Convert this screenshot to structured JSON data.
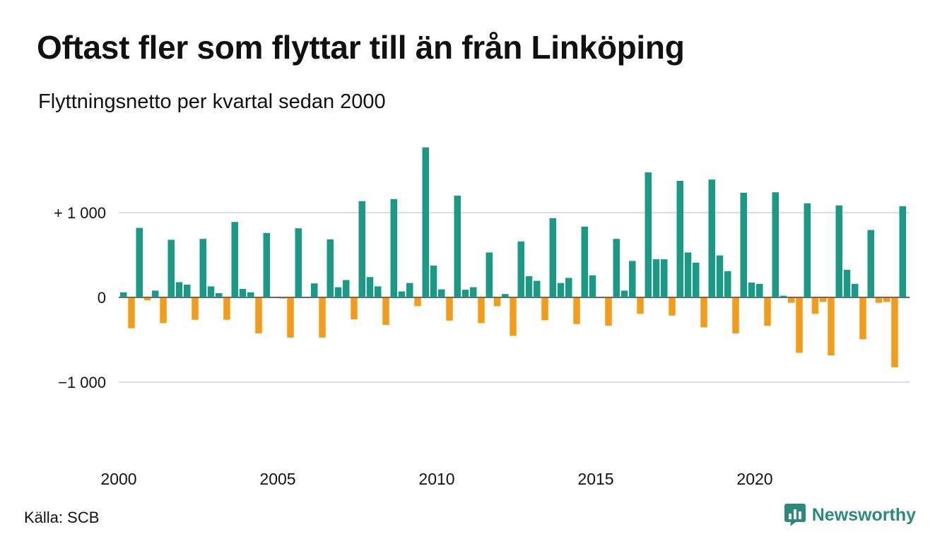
{
  "title": "Oftast fler som flyttar till än från Linköping",
  "subtitle": "Flyttningsnetto per kvartal sedan 2000",
  "source": "Källa: SCB",
  "brand": {
    "name": "Newsworthy",
    "icon": "newsworthy-logo-icon"
  },
  "colors": {
    "positive": "#1a9985",
    "negative": "#f39c1a",
    "grid": "#dddddd",
    "zero": "#333333"
  },
  "chart_data": {
    "type": "bar",
    "x_start": 2000,
    "x_end": 2024,
    "periods_per_year": 4,
    "xticks": [
      2000,
      2005,
      2010,
      2015,
      2020
    ],
    "xtick_labels": [
      "2000",
      "2005",
      "2010",
      "2015",
      "2020"
    ],
    "yticks": [
      1000,
      0,
      -1000
    ],
    "ytick_labels": [
      "+ 1 000",
      "0",
      "−1 000"
    ],
    "ylim": [
      -1800,
      1800
    ],
    "grid": true,
    "values": [
      60,
      -360,
      820,
      -30,
      80,
      -300,
      680,
      180,
      150,
      -260,
      690,
      130,
      50,
      -260,
      890,
      100,
      60,
      -420,
      760,
      0,
      -10,
      -470,
      815,
      0,
      165,
      -470,
      685,
      120,
      205,
      -255,
      1135,
      240,
      130,
      -320,
      1160,
      70,
      170,
      -100,
      1770,
      375,
      95,
      -270,
      1200,
      90,
      120,
      -300,
      530,
      -100,
      40,
      -450,
      660,
      250,
      195,
      -265,
      935,
      170,
      230,
      -310,
      835,
      260,
      0,
      -330,
      690,
      80,
      430,
      -190,
      1475,
      450,
      450,
      -210,
      1375,
      530,
      410,
      -350,
      1390,
      495,
      310,
      -420,
      1235,
      175,
      160,
      -330,
      1240,
      20,
      -60,
      -650,
      1110,
      -190,
      -50,
      -680,
      1085,
      325,
      160,
      -490,
      795,
      -60,
      -50,
      -820,
      1075
    ]
  }
}
